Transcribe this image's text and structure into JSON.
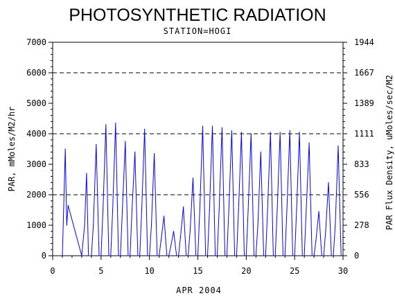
{
  "chart_data": {
    "type": "line",
    "title": "PHOTOSYNTHETIC RADIATION",
    "subtitle": "STATION=HOGI",
    "xlabel": "APR 2004",
    "ylabel_left": "PAR, mMoles/M2/hr",
    "ylabel_right": "PAR Flux Density, uMoles/sec/M2",
    "xlim": [
      0,
      30
    ],
    "ylim_left": [
      0,
      7000
    ],
    "ylim_right": [
      0,
      1944
    ],
    "x_ticks": [
      0,
      5,
      10,
      15,
      20,
      25,
      30
    ],
    "y_ticks_left": [
      0,
      1000,
      2000,
      3000,
      4000,
      5000,
      6000,
      7000
    ],
    "y_ticks_right": [
      "0",
      "278",
      "556",
      "833",
      "1111",
      "1389",
      "1667",
      "1944"
    ],
    "reference_lines": [
      2000,
      4000,
      6000
    ],
    "series_color": "#0000ff",
    "series": [
      {
        "x": [
          1.0,
          1.3,
          1.45,
          1.6,
          3.0,
          3.3,
          3.5,
          3.7,
          4.0,
          4.2,
          4.5,
          4.8,
          5.0,
          5.2,
          5.5,
          5.8,
          6.0,
          6.2,
          6.5,
          6.8,
          7.0,
          7.2,
          7.5,
          7.8,
          8.0,
          8.2,
          8.5,
          8.8,
          9.0,
          9.2,
          9.5,
          9.8,
          10.0,
          10.2,
          10.5,
          10.8,
          11.0,
          11.2,
          11.5,
          11.8,
          12.0,
          12.2,
          12.5,
          12.8,
          13.0,
          13.2,
          13.5,
          13.8,
          14.0,
          14.2,
          14.5,
          14.8,
          15.0,
          15.2,
          15.5,
          15.8,
          16.0,
          16.2,
          16.5,
          16.8,
          17.0,
          17.2,
          17.5,
          17.8,
          18.0,
          18.2,
          18.5,
          18.8,
          19.0,
          19.2,
          19.5,
          19.8,
          20.0,
          20.2,
          20.5,
          20.8,
          21.0,
          21.2,
          21.5,
          21.8,
          22.0,
          22.2,
          22.5,
          22.8,
          23.0,
          23.2,
          23.5,
          23.8,
          24.0,
          24.2,
          24.5,
          24.8,
          25.0,
          25.2,
          25.5,
          25.8,
          26.0,
          26.2,
          26.5,
          26.8,
          27.0,
          27.2,
          27.5,
          27.8,
          28.0,
          28.2,
          28.5,
          28.8,
          29.0,
          29.2,
          29.5,
          29.8
        ],
        "y": [
          0,
          3500,
          1000,
          1650,
          0,
          1000,
          2700,
          0,
          0,
          1000,
          3650,
          0,
          0,
          1500,
          4300,
          0,
          0,
          1500,
          4350,
          0,
          0,
          1500,
          3750,
          0,
          0,
          1500,
          3400,
          0,
          0,
          1500,
          4150,
          0,
          0,
          1000,
          3350,
          0,
          0,
          500,
          1300,
          0,
          0,
          300,
          800,
          0,
          0,
          600,
          1600,
          0,
          0,
          800,
          2550,
          0,
          0,
          1500,
          4250,
          0,
          0,
          1500,
          4250,
          0,
          0,
          1500,
          4200,
          0,
          0,
          1500,
          4100,
          0,
          0,
          1500,
          4050,
          0,
          0,
          1500,
          4000,
          0,
          0,
          1000,
          3400,
          0,
          0,
          1500,
          4050,
          0,
          0,
          1500,
          4050,
          0,
          0,
          1500,
          4100,
          0,
          0,
          1500,
          4050,
          0,
          0,
          1500,
          3700,
          0,
          0,
          500,
          1450,
          0,
          0,
          800,
          2400,
          0,
          0,
          1000,
          3600,
          0
        ]
      }
    ]
  }
}
